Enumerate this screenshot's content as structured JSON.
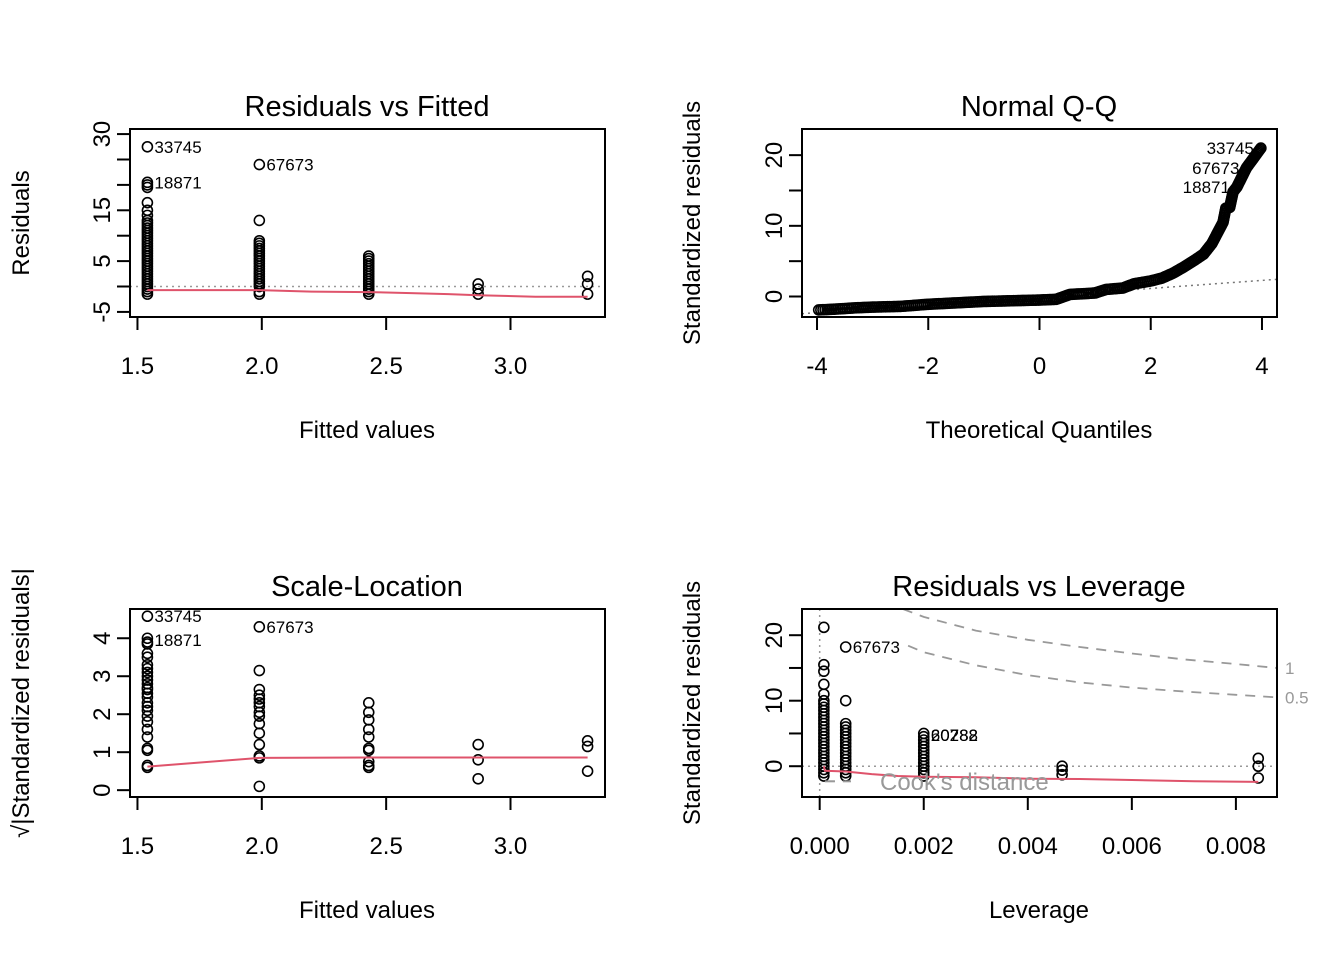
{
  "colors": {
    "points": "#000000",
    "smooth": "#DF536B",
    "reference": "#999999",
    "cook": "#999999"
  },
  "chart_data": [
    {
      "id": "residuals-vs-fitted",
      "type": "scatter",
      "title": "Residuals vs Fitted",
      "xlabel": "Fitted values",
      "ylabel": "Residuals",
      "xlim": [
        1.47,
        3.38
      ],
      "ylim": [
        -6,
        31
      ],
      "xticks": [
        1.5,
        2.0,
        2.5,
        3.0
      ],
      "xtick_labels": [
        "1.5",
        "2.0",
        "2.5",
        "3.0"
      ],
      "yticks": [
        -5,
        0,
        5,
        10,
        15,
        20,
        25,
        30
      ],
      "ytick_labels": [
        "-5",
        "5",
        "15",
        "30"
      ],
      "ytick_label_values": [
        -5,
        5,
        15,
        30
      ],
      "hline": 0,
      "points": {
        "columns": [
          {
            "x": 1.54,
            "y": [
              -1.5,
              -1,
              -0.5,
              0,
              0.5,
              1,
              1.5,
              2,
              2.5,
              3,
              3.5,
              4,
              4.5,
              5,
              5.5,
              6,
              6.5,
              7,
              7.5,
              8,
              8.5,
              9,
              9.5,
              10,
              10.5,
              11,
              11.5,
              12,
              12.5,
              13,
              14,
              15,
              16.5,
              19.5,
              20,
              20.5,
              27.5
            ]
          },
          {
            "x": 1.99,
            "y": [
              -1.5,
              -1,
              0,
              0.5,
              1,
              1.5,
              2,
              2.5,
              3,
              3.5,
              4,
              4.5,
              5,
              5.5,
              6,
              6.5,
              7,
              7.5,
              8,
              8.5,
              9,
              13,
              24
            ]
          },
          {
            "x": 2.43,
            "y": [
              -1.5,
              -1,
              -0.5,
              0,
              0.5,
              1,
              1.5,
              2,
              2.5,
              3,
              3.5,
              4,
              4.5,
              5,
              5.5,
              6
            ]
          },
          {
            "x": 2.87,
            "y": [
              -1.5,
              -0.5,
              0.5
            ]
          },
          {
            "x": 3.31,
            "y": [
              -1.5,
              0.5,
              2
            ]
          }
        ]
      },
      "labels": [
        {
          "text": "33745",
          "x": 1.54,
          "y": 27.5
        },
        {
          "text": "18871",
          "x": 1.54,
          "y": 20.5
        },
        {
          "text": "67673",
          "x": 1.99,
          "y": 24
        }
      ],
      "smooth": {
        "x": [
          1.54,
          1.99,
          2.2,
          2.43,
          2.6,
          2.75,
          2.87,
          3.1,
          3.31
        ],
        "y": [
          -0.7,
          -0.7,
          -1.0,
          -1.1,
          -1.3,
          -1.5,
          -1.7,
          -2.0,
          -2.0
        ]
      }
    },
    {
      "id": "normal-qq",
      "type": "scatter",
      "title": "Normal Q-Q",
      "xlabel": "Theoretical Quantiles",
      "ylabel": "Standardized residuals",
      "xlim": [
        -4.27,
        4.27
      ],
      "ylim": [
        -2.9,
        23.7
      ],
      "xticks": [
        -4,
        -2,
        0,
        2,
        4
      ],
      "xtick_labels": [
        "-4",
        "-2",
        "0",
        "2",
        "4"
      ],
      "yticks": [
        0,
        5,
        10,
        15,
        20
      ],
      "ytick_labels": [
        "0",
        "10",
        "20"
      ],
      "ytick_label_values": [
        0,
        10,
        20
      ],
      "reference_line": {
        "slope": 0.57,
        "intercept": 0
      },
      "curve": {
        "x": [
          -3.97,
          -3.7,
          -3.5,
          -3.3,
          -3.0,
          -2.5,
          -2.0,
          -1.5,
          -1.0,
          -0.5,
          0.0,
          0.3,
          0.55,
          0.8,
          1.0,
          1.2,
          1.5,
          1.7,
          2.0,
          2.2,
          2.4,
          2.6,
          2.8,
          2.95,
          3.1,
          3.2,
          3.3,
          3.35,
          3.42,
          3.48,
          3.55,
          3.72,
          3.98
        ],
        "y": [
          -1.9,
          -1.8,
          -1.7,
          -1.6,
          -1.5,
          -1.4,
          -1.1,
          -0.9,
          -0.7,
          -0.6,
          -0.5,
          -0.4,
          0.3,
          0.4,
          0.5,
          1.0,
          1.2,
          1.8,
          2.2,
          2.6,
          3.3,
          4.2,
          5.2,
          6.0,
          7.5,
          9.0,
          10.5,
          12.5,
          12.6,
          14.8,
          15.5,
          18.2,
          21.0
        ]
      },
      "labels": [
        {
          "text": "33745",
          "x": 3.98,
          "y": 21.0
        },
        {
          "text": "67673",
          "x": 3.72,
          "y": 18.2
        },
        {
          "text": "18871",
          "x": 3.55,
          "y": 15.5
        }
      ]
    },
    {
      "id": "scale-location",
      "type": "scatter",
      "title": "Scale-Location",
      "xlabel": "Fitted values",
      "ylabel": "√|Standardized residuals|",
      "xlim": [
        1.47,
        3.38
      ],
      "ylim": [
        -0.18,
        4.77
      ],
      "xticks": [
        1.5,
        2.0,
        2.5,
        3.0
      ],
      "xtick_labels": [
        "1.5",
        "2.0",
        "2.5",
        "3.0"
      ],
      "yticks": [
        0,
        1,
        2,
        3,
        4
      ],
      "ytick_labels": [
        "0",
        "1",
        "2",
        "3",
        "4"
      ],
      "ytick_label_values": [
        0,
        1,
        2,
        3,
        4
      ],
      "points": {
        "columns": [
          {
            "x": 1.54,
            "y": [
              0.6,
              0.65,
              1.05,
              1.1,
              1.4,
              1.6,
              1.8,
              1.95,
              2.1,
              2.2,
              2.3,
              2.45,
              2.55,
              2.65,
              2.7,
              2.8,
              2.9,
              3.0,
              3.1,
              3.2,
              3.3,
              3.5,
              3.6,
              3.85,
              3.9,
              4.0,
              4.58
            ]
          },
          {
            "x": 1.99,
            "y": [
              0.1,
              0.85,
              0.9,
              1.2,
              1.5,
              1.75,
              1.95,
              2.05,
              2.2,
              2.3,
              2.4,
              2.5,
              2.65,
              3.15,
              4.3
            ]
          },
          {
            "x": 2.43,
            "y": [
              0.6,
              0.65,
              0.75,
              1.05,
              1.1,
              1.4,
              1.6,
              1.85,
              2.05,
              2.3
            ]
          },
          {
            "x": 2.87,
            "y": [
              0.3,
              0.8,
              1.2
            ]
          },
          {
            "x": 3.31,
            "y": [
              0.5,
              1.15,
              1.3
            ]
          }
        ]
      },
      "labels": [
        {
          "text": "33745",
          "x": 1.54,
          "y": 4.58
        },
        {
          "text": "18871",
          "x": 1.54,
          "y": 3.95
        },
        {
          "text": "67673",
          "x": 1.99,
          "y": 4.3
        }
      ],
      "smooth": {
        "x": [
          1.54,
          1.99,
          2.43,
          2.87,
          3.31
        ],
        "y": [
          0.62,
          0.85,
          0.86,
          0.86,
          0.86
        ]
      }
    },
    {
      "id": "residuals-vs-leverage",
      "type": "scatter",
      "title": "Residuals vs Leverage",
      "xlabel": "Leverage",
      "ylabel": "Standardized residuals",
      "xlim": [
        -0.00034,
        0.00879
      ],
      "ylim": [
        -4.7,
        24.0
      ],
      "xticks": [
        0.0,
        0.002,
        0.004,
        0.006,
        0.008
      ],
      "xtick_labels": [
        "0.000",
        "0.002",
        "0.004",
        "0.006",
        "0.008"
      ],
      "yticks": [
        0,
        5,
        10,
        15,
        20
      ],
      "ytick_labels": [
        "0",
        "10",
        "20"
      ],
      "ytick_label_values": [
        0,
        10,
        20
      ],
      "hline": 0,
      "vline": 0,
      "points": {
        "columns": [
          {
            "x": 8e-05,
            "y": [
              -1.5,
              -1,
              -0.5,
              0,
              0.5,
              1,
              1.5,
              2,
              2.5,
              3,
              3.5,
              4,
              4.5,
              5,
              5.5,
              6,
              6.5,
              7,
              7.5,
              8,
              8.5,
              9,
              9.5,
              10,
              11,
              12.5,
              14.5,
              15.5,
              21.2
            ]
          },
          {
            "x": 0.0005,
            "y": [
              -1.5,
              -1,
              -0.5,
              0,
              0.5,
              1,
              1.5,
              2,
              2.5,
              3,
              3.5,
              4,
              4.5,
              5,
              5.5,
              6,
              6.5,
              10,
              18.2
            ]
          },
          {
            "x": 0.002,
            "y": [
              -1.5,
              -1,
              -0.5,
              0,
              0.5,
              1,
              1.5,
              2,
              2.5,
              3,
              3.5,
              4,
              4.5,
              5
            ]
          },
          {
            "x": 0.00466,
            "y": [
              -1.3,
              -0.6,
              0
            ]
          },
          {
            "x": 0.00843,
            "y": [
              -1.8,
              0,
              1.2
            ]
          }
        ]
      },
      "labels": [
        {
          "text": "67673",
          "x": 0.0005,
          "y": 18.2
        },
        {
          "text": "20288",
          "x": 0.002,
          "y": 4.8
        },
        {
          "text": "60782",
          "x": 0.002,
          "y": 4.8
        }
      ],
      "smooth": {
        "x": [
          8e-05,
          0.0001,
          0.0005,
          0.001,
          0.0015,
          0.002,
          0.003,
          0.004,
          0.005,
          0.006,
          0.0072,
          0.00843
        ],
        "y": [
          0.0,
          -0.7,
          -0.8,
          -1.2,
          -1.5,
          -1.6,
          -1.7,
          -1.9,
          -1.95,
          -2.1,
          -2.3,
          -2.4
        ]
      },
      "cook_contours": [
        {
          "level": 1,
          "label": "1",
          "x": [
            0.0016,
            0.002,
            0.003,
            0.004,
            0.005,
            0.006,
            0.007,
            0.008,
            0.00879
          ],
          "y": [
            24.0,
            22.8,
            20.7,
            19.3,
            18.2,
            17.2,
            16.3,
            15.6,
            15.0
          ]
        },
        {
          "level": 0.5,
          "label": "0.5",
          "x": [
            0.0017,
            0.002,
            0.003,
            0.004,
            0.005,
            0.006,
            0.007,
            0.008,
            0.00879
          ],
          "y": [
            18.4,
            17.4,
            15.4,
            13.9,
            12.8,
            12.0,
            11.4,
            10.9,
            10.5
          ]
        },
        {
          "level": 0.5,
          "label": "",
          "x": [
            0.0001,
            0.0006
          ],
          "y": [
            -2.3,
            -2.3
          ]
        }
      ],
      "cook_legend": "Cook's distance"
    }
  ]
}
